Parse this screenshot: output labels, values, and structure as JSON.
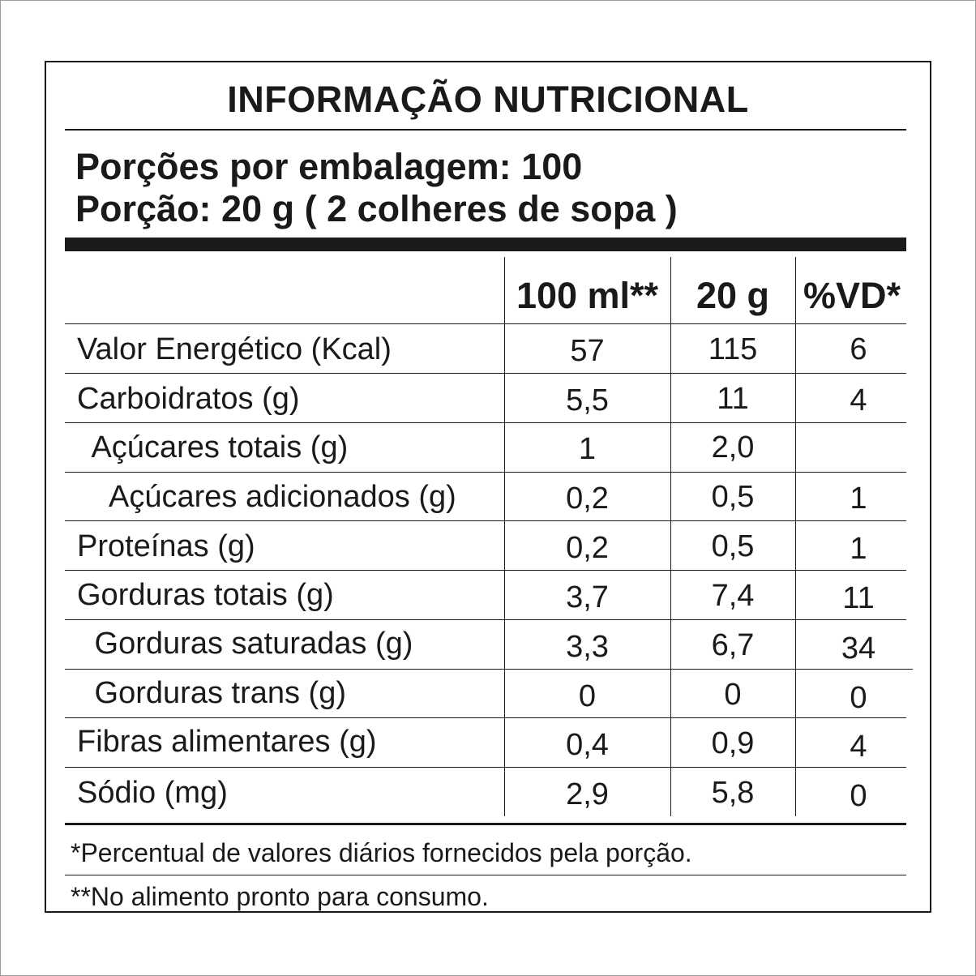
{
  "title": "INFORMAÇÃO NUTRICIONAL",
  "servings_per_package": "Porções por embalagem: 100",
  "serving_size": "Porção: 20 g ( 2 colheres de sopa )",
  "columns": [
    "100 ml**",
    "20 g",
    "%VD*"
  ],
  "rows": [
    {
      "label": "Valor Energético (Kcal)",
      "values": [
        "57",
        "115",
        "6"
      ]
    },
    {
      "label": "Carboidratos (g)",
      "values": [
        "5,5",
        "11",
        "4"
      ]
    },
    {
      "label": " Açúcares totais (g)",
      "values": [
        "1",
        "2,0",
        ""
      ]
    },
    {
      "label": "  Açúcares adicionados (g)",
      "values": [
        "0,2",
        "0,5",
        "1"
      ]
    },
    {
      "label": "Proteínas (g)",
      "values": [
        "0,2",
        "0,5",
        "1"
      ]
    },
    {
      "label": "Gorduras totais (g)",
      "values": [
        "3,7",
        "7,4",
        "11"
      ]
    },
    {
      "label": " Gorduras saturadas (g)",
      "values": [
        "3,3",
        "6,7",
        "34"
      ]
    },
    {
      "label": " Gorduras trans (g)",
      "values": [
        "0",
        "0",
        "0"
      ]
    },
    {
      "label": "Fibras alimentares (g)",
      "values": [
        "0,4",
        "0,9",
        "4"
      ]
    },
    {
      "label": "Sódio (mg)",
      "values": [
        "2,9",
        "5,8",
        "0"
      ]
    }
  ],
  "footnotes": [
    "*Percentual de valores diários fornecidos pela porção.",
    "**No alimento pronto para consumo."
  ]
}
